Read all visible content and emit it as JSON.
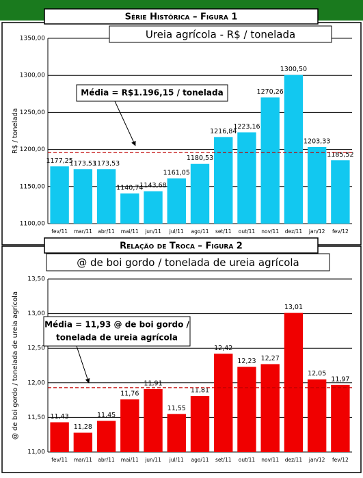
{
  "chart_data": [
    {
      "type": "bar",
      "title": "Série Histórica – Figura 1",
      "subtitle": "Ureia agrícola - R$ / tonelada",
      "ylabel": "R$ / tonelada",
      "categories": [
        "fev/11",
        "mar/11",
        "abr/11",
        "mai/11",
        "jun/11",
        "jul/11",
        "ago/11",
        "set/11",
        "out/11",
        "nov/11",
        "dez/11",
        "jan/12",
        "fev/12"
      ],
      "values": [
        1177.25,
        1173.53,
        1173.53,
        1140.74,
        1143.68,
        1161.05,
        1180.53,
        1216.84,
        1223.16,
        1270.26,
        1300.5,
        1203.33,
        1185.52
      ],
      "value_labels": [
        "1177,25",
        "1173,53",
        "1173,53",
        "1140,74",
        "1143,68",
        "1161,05",
        "1180,53",
        "1216,84",
        "1223,16",
        "1270,26",
        "1300,50",
        "1203,33",
        "1185,52"
      ],
      "color": "#12c8f0",
      "ylim": [
        1100,
        1350
      ],
      "yticks": [
        {
          "value": 1100,
          "label": "1100,00"
        },
        {
          "value": 1150,
          "label": "1150,00"
        },
        {
          "value": 1200,
          "label": "1200,00"
        },
        {
          "value": 1250,
          "label": "1250,00"
        },
        {
          "value": 1300,
          "label": "1300,00"
        },
        {
          "value": 1350,
          "label": "1350,00"
        }
      ],
      "grid": true,
      "mean": 1196.15,
      "mean_color": "#c00000",
      "annotation": [
        "Média = R$1.196,15 / tonelada"
      ]
    },
    {
      "type": "bar",
      "title": "Relação de Troca – Figura 2",
      "subtitle": "@ de boi gordo / tonelada de ureia agrícola",
      "ylabel": "@ de boi gordo / tonelada de ureia agrícola",
      "categories": [
        "fev/11",
        "mar/11",
        "abr/11",
        "mai/11",
        "jun/11",
        "jul/11",
        "ago/11",
        "set/11",
        "out/11",
        "nov/11",
        "dez/11",
        "jan/12",
        "fev/12"
      ],
      "values": [
        11.43,
        11.28,
        11.45,
        11.76,
        11.91,
        11.55,
        11.81,
        12.42,
        12.23,
        12.27,
        13.01,
        12.05,
        11.97
      ],
      "value_labels": [
        "11,43",
        "11,28",
        "11,45",
        "11,76",
        "11,91",
        "11,55",
        "11,81",
        "12,42",
        "12,23",
        "12,27",
        "13,01",
        "12,05",
        "11,97"
      ],
      "color": "#f00000",
      "ylim": [
        11,
        13.5
      ],
      "yticks": [
        {
          "value": 11,
          "label": "11,00"
        },
        {
          "value": 11.5,
          "label": "11,50"
        },
        {
          "value": 12,
          "label": "12,00"
        },
        {
          "value": 12.5,
          "label": "12,50"
        },
        {
          "value": 13,
          "label": "13,00"
        },
        {
          "value": 13.5,
          "label": "13,50"
        }
      ],
      "grid": true,
      "mean": 11.93,
      "mean_color": "#c00000",
      "annotation": [
        "Média = 11,93 @ de boi gordo /",
        "tonelada de ureia agrícola"
      ]
    }
  ]
}
